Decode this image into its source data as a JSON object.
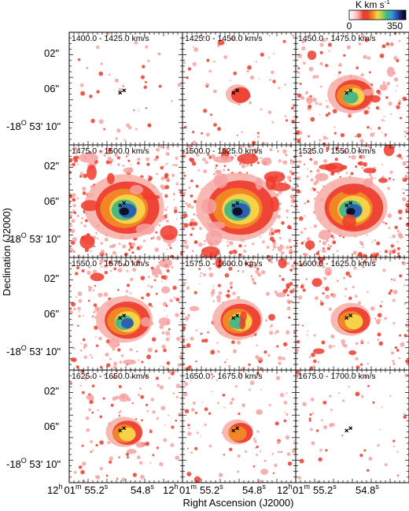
{
  "figure": {
    "colorbar": {
      "unit_label": "K km s",
      "unit_superscript": "-1",
      "min_label": "0",
      "max_label": "350",
      "min": 0,
      "max": 350,
      "colors": [
        "#ffffff",
        "#fde0dc",
        "#f7a1a1",
        "#ee3b2c",
        "#e44a2a",
        "#f28c26",
        "#f7d84a",
        "#9fd04a",
        "#3fb58a",
        "#2f9fd9",
        "#2d57b3",
        "#1c1f66",
        "#000000"
      ]
    },
    "xlabel": "Right Ascension (J2000)",
    "ylabel": "Declination (J2000)",
    "dec_ticks": [
      {
        "main": "02\"",
        "prefix": "",
        "sup": "",
        "rest": ""
      },
      {
        "main": "06\"",
        "prefix": "",
        "sup": "",
        "rest": ""
      },
      {
        "main": "",
        "prefix": "-18",
        "sup": "O",
        "rest": " 53' 10\""
      }
    ],
    "ra_ticks": [
      {
        "h": "12",
        "hsup": "h",
        "m": "01",
        "msup": "m",
        "s": "55.2",
        "ssup": "s"
      },
      {
        "s": "54.8",
        "ssup": "s"
      }
    ],
    "ra_edge_label": {
      "h": "12",
      "hsup": "h"
    },
    "panels": [
      {
        "label": "1400.0 - 1425.0 km/s",
        "emission": 0.0
      },
      {
        "label": "1425.0 - 1450.0 km/s",
        "emission": 0.1
      },
      {
        "label": "1450.0 - 1475.0 km/s",
        "emission": 0.45
      },
      {
        "label": "1475.0 - 1500.0 km/s",
        "emission": 0.95
      },
      {
        "label": "1500.0 - 1525.0 km/s",
        "emission": 1.0
      },
      {
        "label": "1525.0 - 1550.0 km/s",
        "emission": 0.85
      },
      {
        "label": "1550.0 - 1575.0 km/s",
        "emission": 0.6
      },
      {
        "label": "1575.0 - 1600.0 km/s",
        "emission": 0.5
      },
      {
        "label": "1600.0 - 1625.0 km/s",
        "emission": 0.35
      },
      {
        "label": "1625.0 - 1650.0 km/s",
        "emission": 0.3
      },
      {
        "label": "1650.0 - 1675.0 km/s",
        "emission": 0.2
      },
      {
        "label": "1675.0 - 1700.0 km/s",
        "emission": 0.05
      }
    ]
  }
}
